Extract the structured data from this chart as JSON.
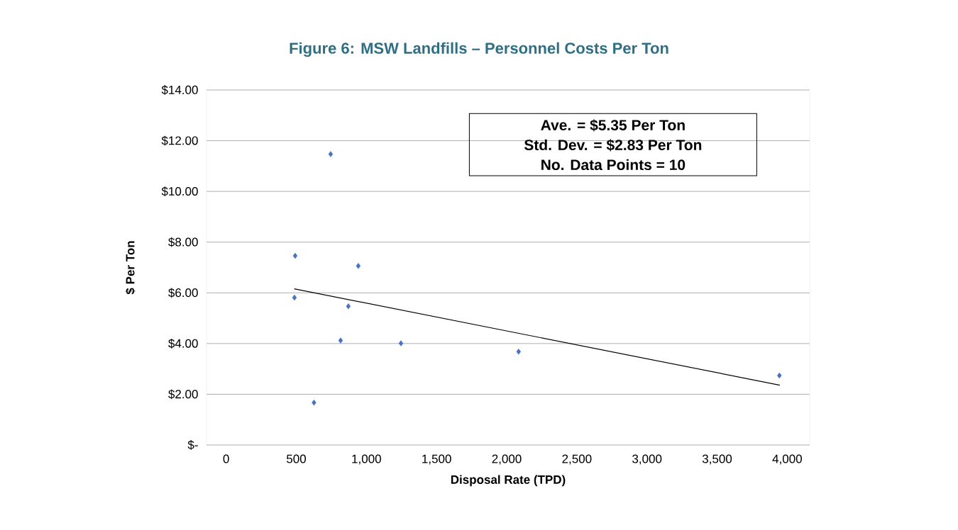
{
  "chart_data": {
    "type": "scatter",
    "title": "Figure 6: MSW Landfills – Personnel Costs Per Ton",
    "xlabel": "Disposal Rate (TPD)",
    "ylabel": "$ Per Ton",
    "annotations": [
      "Ave. = $5.35 Per Ton",
      "Std. Dev. = $2.83 Per Ton",
      "No. Data Points = 10"
    ],
    "series": [
      {
        "type": "scatter",
        "color": "#4472c4",
        "marker": "diamond",
        "x": [
          745,
          492,
          942,
          487,
          871,
          816,
          1246,
          626,
          2085,
          3944
        ],
        "values": [
          11.47,
          7.46,
          7.06,
          5.81,
          5.47,
          4.12,
          4.01,
          1.67,
          3.68,
          2.74
        ]
      },
      {
        "type": "line",
        "color": "#000000",
        "marker": "none",
        "x": [
          485,
          3947
        ],
        "values": [
          6.16,
          2.36
        ]
      }
    ],
    "xlim": [
      -140,
      4160
    ],
    "ylim": [
      0,
      14
    ],
    "xticks": [
      0,
      500,
      {
        "value": 1000,
        "label": "1,000"
      },
      {
        "value": 1500,
        "label": "1,500"
      },
      {
        "value": 2000,
        "label": "2,000"
      },
      {
        "value": 2500,
        "label": "2,500"
      },
      {
        "value": 3000,
        "label": "3,000"
      },
      {
        "value": 3500,
        "label": "3,500"
      },
      {
        "value": 4000,
        "label": "4,000"
      }
    ],
    "yticks": [
      {
        "value": 0,
        "label": "$-"
      },
      {
        "value": 2,
        "label": "$2.00"
      },
      {
        "value": 4,
        "label": "$4.00"
      },
      {
        "value": 6,
        "label": "$6.00"
      },
      {
        "value": 8,
        "label": "$8.00"
      },
      {
        "value": 10,
        "label": "$10.00"
      },
      {
        "value": 12,
        "label": "$12.00"
      },
      {
        "value": 14,
        "label": "$14.00"
      }
    ],
    "grid": "y"
  }
}
